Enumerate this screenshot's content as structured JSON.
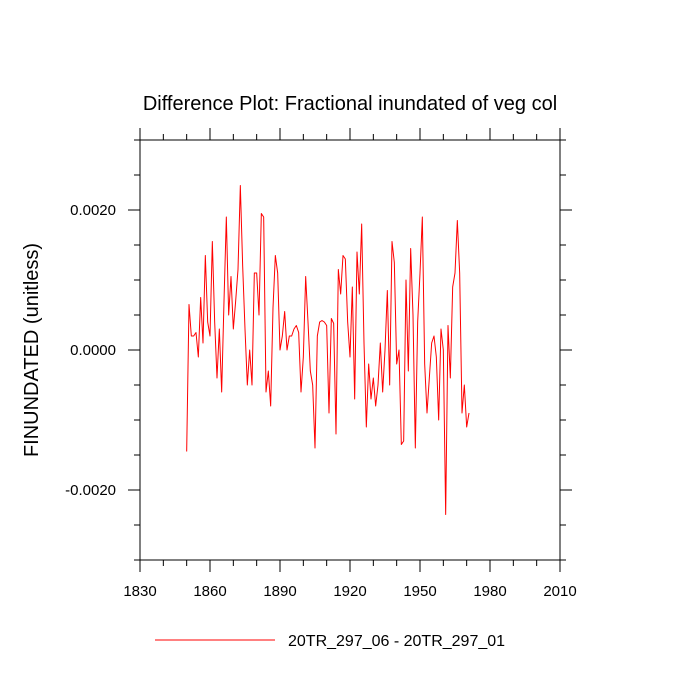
{
  "chart_data": {
    "type": "line",
    "title": "Difference Plot: Fractional inundated of veg col",
    "xlabel": "",
    "ylabel": "FINUNDATED  (unitless)",
    "xlim": [
      1830,
      2010
    ],
    "ylim": [
      -0.003,
      0.003
    ],
    "x_ticks": [
      1830,
      1860,
      1890,
      1920,
      1950,
      1980,
      2010
    ],
    "x_tick_labels": [
      "1830",
      "1860",
      "1890",
      "1920",
      "1950",
      "1980",
      "2010"
    ],
    "x_minor_step": 10,
    "y_ticks": [
      -0.002,
      0.0,
      0.002
    ],
    "y_tick_labels": [
      "-0.0020",
      "0.0000",
      "0.0020"
    ],
    "y_minor_step": 0.0005,
    "grid": false,
    "legend_position": "bottom-center",
    "series": [
      {
        "name": "20TR_297_06 - 20TR_297_01",
        "color": "#ff0000",
        "x_start": 1850,
        "x_step": 1,
        "values": [
          -0.00145,
          0.00065,
          0.0002,
          0.0002,
          0.00025,
          -0.0001,
          0.00075,
          0.0001,
          0.00135,
          0.0004,
          0.0002,
          0.00155,
          0.0004,
          -0.0004,
          0.0003,
          -0.0006,
          0.0007,
          0.0019,
          0.0005,
          0.00105,
          0.0003,
          0.0007,
          0.00115,
          0.00235,
          0.0012,
          0.0003,
          -0.0005,
          0.0,
          -0.0005,
          0.0011,
          0.0011,
          0.0005,
          0.00195,
          0.0019,
          -0.0006,
          -0.0003,
          -0.0008,
          0.0006,
          0.00135,
          0.0011,
          0.0,
          0.0002,
          0.00055,
          0.0,
          0.0002,
          0.0002,
          0.0003,
          0.00035,
          0.00025,
          -0.0006,
          -0.0001,
          0.00105,
          0.0004,
          -0.0003,
          -0.0005,
          -0.0014,
          0.0002,
          0.0004,
          0.00042,
          0.0004,
          0.00035,
          -0.0009,
          0.00045,
          0.00038,
          -0.0012,
          0.00115,
          0.0008,
          0.00135,
          0.0013,
          0.0004,
          -0.0001,
          0.0009,
          -0.0007,
          0.0014,
          0.0008,
          0.0018,
          0.0001,
          -0.0011,
          -0.0002,
          -0.0007,
          -0.0004,
          -0.0008,
          -0.0005,
          0.0001,
          -0.0006,
          0.0,
          0.00085,
          -0.0005,
          0.00155,
          0.00125,
          -0.0002,
          0.0,
          -0.00135,
          -0.0013,
          0.001,
          -0.0003,
          0.00145,
          0.0005,
          -0.0014,
          0.0004,
          0.0011,
          0.0019,
          -0.0002,
          -0.0009,
          -0.0004,
          0.0001,
          0.0002,
          -0.0001,
          -0.001,
          0.0003,
          0.0,
          -0.00235,
          0.00035,
          -0.0004,
          0.0009,
          0.0011,
          0.00185,
          0.0011,
          -0.0009,
          -0.0005,
          -0.0011,
          -0.0009
        ]
      }
    ]
  }
}
